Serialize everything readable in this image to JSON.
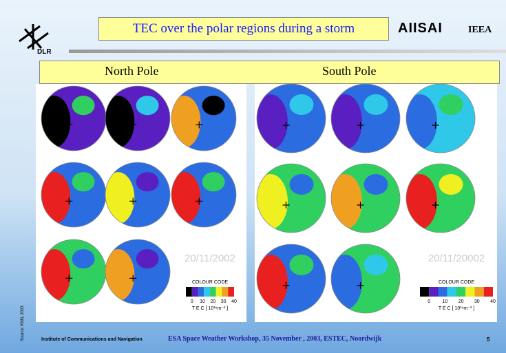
{
  "header": {
    "title": "TEC over the polar regions during a storm",
    "logo": "AIISAI",
    "org": "IEEA",
    "dlr": "DLR"
  },
  "panels": [
    {
      "title": "North Pole",
      "date": "20/11/2002"
    },
    {
      "title": "South Pole",
      "date": "20/11/20002"
    }
  ],
  "colour_code": {
    "title": "COLOUR CODE",
    "ticks": [
      "0",
      "10",
      "20",
      "30",
      "40"
    ],
    "unit": "T E C [ 10¹⁶m⁻² ]"
  },
  "footer": {
    "source": "Source: KNN, 2003",
    "institute": "Institute of Communications and Navigation",
    "event": "ESA Space Weather Workshop, 35 November , 2003, ESTEC, Noordwijk",
    "page": "5"
  }
}
